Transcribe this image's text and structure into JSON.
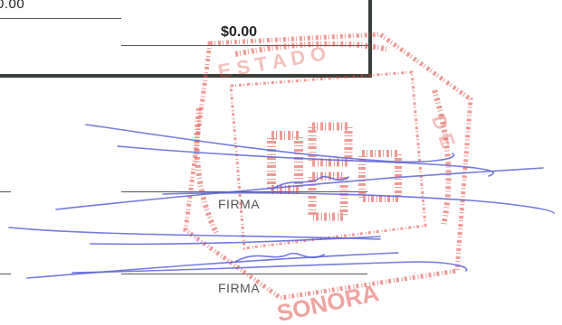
{
  "totals": {
    "left_amount": "0.00",
    "right_amount": "$0.00"
  },
  "signatures": [
    {
      "label": "FIRMA"
    },
    {
      "label": "FIRMA"
    }
  ],
  "stamp": {
    "text": "SONORA",
    "color": "#e0473f"
  },
  "ink_color": "#5b63d6"
}
